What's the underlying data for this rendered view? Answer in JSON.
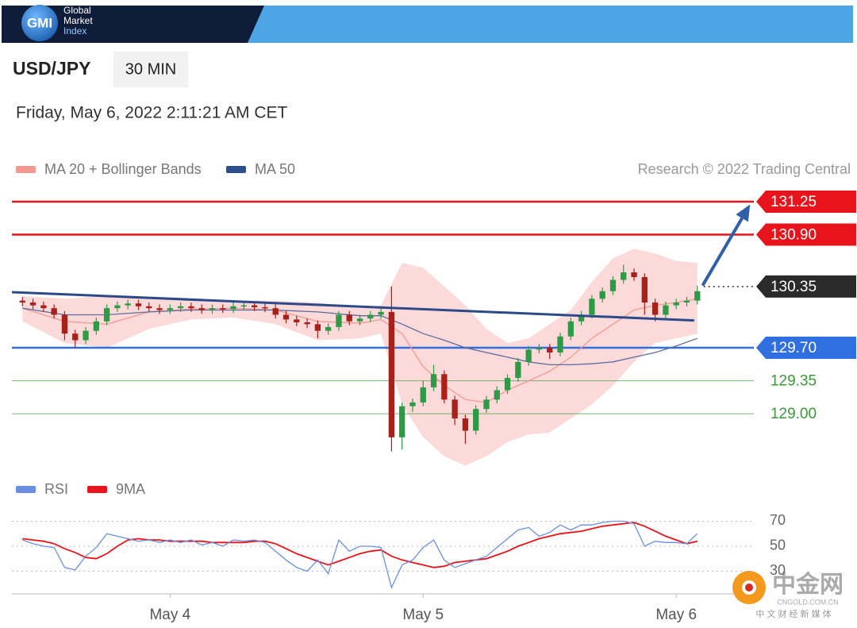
{
  "header": {
    "logo": "GMI",
    "brand": [
      "Global",
      "Market",
      "Index"
    ]
  },
  "symbol": "USD/JPY",
  "timeframe": "30 MIN",
  "timestamp": "Friday, May 6, 2022 2:11:21 AM CET",
  "chart_data": [
    {
      "type": "candlestick",
      "credit": "Research © 2022 Trading Central",
      "xlim": [
        -15,
        55.36
      ],
      "ylim": [
        128.42,
        131.41
      ],
      "up_color": "#2f9a45",
      "down_color": "#a8201a",
      "band_color": "#fdd3d3",
      "x": [
        -14,
        -13,
        -12,
        -11,
        -10,
        -9,
        -8,
        -7,
        -6,
        -5,
        -4,
        -3,
        -2,
        -1,
        0,
        1,
        2,
        3,
        4,
        5,
        6,
        7,
        8,
        9,
        10,
        11,
        12,
        13,
        14,
        15,
        16,
        17,
        18,
        19,
        20,
        21,
        22,
        23,
        24,
        25,
        26,
        27,
        28,
        29,
        30,
        31,
        32,
        33,
        34,
        35,
        36,
        37,
        38,
        39,
        40,
        41,
        42,
        43,
        44,
        45,
        46,
        47,
        48,
        49,
        50
      ],
      "open": [
        130.2,
        130.18,
        130.15,
        130.12,
        130.05,
        129.85,
        129.78,
        129.88,
        129.98,
        130.12,
        130.15,
        130.17,
        130.14,
        130.12,
        130.1,
        130.12,
        130.14,
        130.12,
        130.1,
        130.12,
        130.11,
        130.14,
        130.15,
        130.13,
        130.12,
        130.05,
        130.0,
        129.97,
        129.95,
        129.88,
        129.92,
        130.05,
        129.98,
        130.01,
        130.05,
        130.08,
        128.75,
        129.08,
        129.12,
        129.28,
        129.42,
        129.15,
        128.95,
        128.82,
        129.05,
        129.15,
        129.25,
        129.38,
        129.55,
        129.68,
        129.7,
        129.65,
        129.82,
        129.98,
        130.05,
        130.22,
        130.3,
        130.42,
        130.5,
        130.45,
        130.18,
        130.05,
        130.15,
        130.18,
        130.2
      ],
      "high": [
        130.24,
        130.22,
        130.19,
        130.16,
        130.09,
        129.89,
        129.92,
        130.02,
        130.16,
        130.19,
        130.21,
        130.21,
        130.18,
        130.16,
        130.16,
        130.18,
        130.18,
        130.16,
        130.16,
        130.16,
        130.18,
        130.19,
        130.19,
        130.17,
        130.16,
        130.09,
        130.04,
        130.01,
        129.99,
        129.96,
        130.09,
        130.09,
        130.05,
        130.09,
        130.12,
        130.35,
        129.12,
        129.16,
        129.35,
        129.52,
        129.46,
        129.19,
        128.99,
        129.09,
        129.19,
        129.29,
        129.42,
        129.59,
        129.72,
        129.74,
        129.74,
        129.86,
        130.02,
        130.09,
        130.26,
        130.34,
        130.46,
        130.58,
        130.54,
        130.49,
        130.22,
        130.19,
        130.22,
        130.24,
        130.36
      ],
      "low": [
        130.14,
        130.11,
        130.08,
        130.01,
        129.78,
        129.7,
        129.74,
        129.84,
        129.94,
        130.08,
        130.11,
        130.1,
        130.08,
        130.06,
        130.06,
        130.08,
        130.08,
        130.06,
        130.06,
        130.07,
        130.07,
        130.1,
        130.09,
        130.08,
        130.01,
        129.96,
        129.93,
        129.91,
        129.8,
        129.84,
        129.88,
        129.94,
        129.94,
        129.97,
        130.01,
        128.6,
        128.62,
        129.02,
        129.08,
        129.24,
        129.11,
        128.88,
        128.68,
        128.78,
        129.01,
        129.11,
        129.21,
        129.34,
        129.51,
        129.64,
        129.58,
        129.61,
        129.78,
        129.94,
        130.01,
        130.18,
        130.26,
        130.38,
        130.41,
        130.05,
        129.98,
        130.01,
        130.11,
        130.14,
        130.16
      ],
      "close": [
        130.18,
        130.15,
        130.12,
        130.05,
        129.85,
        129.78,
        129.88,
        129.98,
        130.12,
        130.15,
        130.17,
        130.14,
        130.12,
        130.1,
        130.12,
        130.14,
        130.12,
        130.1,
        130.12,
        130.11,
        130.14,
        130.15,
        130.13,
        130.12,
        130.05,
        130.0,
        129.97,
        129.95,
        129.88,
        129.92,
        130.05,
        129.98,
        130.01,
        130.05,
        130.08,
        128.75,
        129.08,
        129.12,
        129.28,
        129.42,
        129.15,
        128.95,
        128.82,
        129.05,
        129.15,
        129.25,
        129.38,
        129.55,
        129.68,
        129.7,
        129.65,
        129.82,
        129.98,
        130.05,
        130.22,
        130.3,
        130.42,
        130.5,
        130.45,
        130.18,
        130.05,
        130.15,
        130.18,
        130.2,
        130.3
      ],
      "series": [
        {
          "name": "MA 20 + Bollinger Bands",
          "color": "#f29a92",
          "x": [
            -14,
            -10,
            -6,
            -2,
            2,
            6,
            10,
            14,
            18,
            20,
            22,
            24,
            26,
            28,
            30,
            32,
            34,
            36,
            38,
            40,
            42,
            44,
            46,
            48,
            50
          ],
          "values": [
            130.12,
            129.98,
            129.95,
            130.08,
            130.11,
            130.12,
            130.1,
            129.98,
            129.96,
            130.0,
            129.85,
            129.5,
            129.3,
            129.15,
            129.12,
            129.25,
            129.35,
            129.45,
            129.6,
            129.8,
            129.95,
            130.1,
            130.15,
            130.18,
            130.22
          ],
          "upper": [
            130.25,
            130.22,
            130.25,
            130.22,
            130.22,
            130.2,
            130.2,
            130.18,
            130.12,
            130.15,
            130.6,
            130.55,
            130.35,
            130.15,
            129.9,
            129.75,
            129.8,
            129.95,
            130.1,
            130.4,
            130.65,
            130.75,
            130.7,
            130.62,
            130.6
          ],
          "lower": [
            129.98,
            129.75,
            129.7,
            129.9,
            130.0,
            130.02,
            129.95,
            129.78,
            129.8,
            129.85,
            129.1,
            128.75,
            128.55,
            128.45,
            128.55,
            128.7,
            128.78,
            128.8,
            128.95,
            129.1,
            129.3,
            129.55,
            129.75,
            129.8,
            129.85
          ]
        },
        {
          "name": "MA 50",
          "color": "#5a6e9c",
          "legend_color": "#2c4f8f",
          "x": [
            -14,
            -10,
            -6,
            -2,
            2,
            6,
            10,
            14,
            18,
            20,
            22,
            24,
            26,
            28,
            30,
            32,
            34,
            36,
            38,
            40,
            42,
            44,
            46,
            48,
            50
          ],
          "values": [
            130.12,
            130.05,
            130.05,
            130.08,
            130.1,
            130.1,
            130.1,
            130.08,
            130.04,
            130.04,
            129.95,
            129.85,
            129.78,
            129.7,
            129.65,
            129.6,
            129.55,
            129.52,
            129.52,
            129.53,
            129.55,
            129.6,
            129.65,
            129.72,
            129.8
          ]
        }
      ],
      "trend_line": {
        "color": "#2c4a8a",
        "x": [
          -15,
          49.7
        ],
        "y": [
          130.29,
          129.99
        ]
      },
      "arrow": {
        "color": "#2f5fa8",
        "x": [
          50.5,
          55
        ],
        "y": [
          130.36,
          131.22
        ]
      },
      "levels": [
        {
          "value": 131.25,
          "label": "131.25",
          "color": "#e8141b",
          "kind": "badge",
          "line": "solid"
        },
        {
          "value": 130.9,
          "label": "130.90",
          "color": "#e8141b",
          "kind": "badge",
          "line": "solid"
        },
        {
          "value": 130.35,
          "label": "130.35",
          "color": "#2b2b2b",
          "kind": "badge",
          "line": "dotted"
        },
        {
          "value": 129.7,
          "label": "129.70",
          "color": "#2f6fe0",
          "kind": "badge",
          "line": "solid"
        },
        {
          "value": 129.35,
          "label": "129.35",
          "color": "#3a9a3a",
          "kind": "text",
          "line": "solid"
        },
        {
          "value": 129.0,
          "label": "129.00",
          "color": "#3a9a3a",
          "kind": "text",
          "line": "solid"
        }
      ]
    },
    {
      "type": "line",
      "xlim": [
        -15,
        55.36
      ],
      "ylim": [
        13.8,
        77.3
      ],
      "yticks": [
        30,
        50,
        70
      ],
      "xticks": [
        {
          "value": 0,
          "label": "May 4"
        },
        {
          "value": 24,
          "label": "May 5"
        },
        {
          "value": 48,
          "label": "May 6"
        }
      ],
      "x": [
        -14,
        -13,
        -12,
        -11,
        -10,
        -9,
        -8,
        -7,
        -6,
        -5,
        -4,
        -3,
        -2,
        -1,
        0,
        1,
        2,
        3,
        4,
        5,
        6,
        7,
        8,
        9,
        10,
        11,
        12,
        13,
        14,
        15,
        16,
        17,
        18,
        19,
        20,
        21,
        22,
        23,
        24,
        25,
        26,
        27,
        28,
        29,
        30,
        31,
        32,
        33,
        34,
        35,
        36,
        37,
        38,
        39,
        40,
        41,
        42,
        43,
        44,
        45,
        46,
        47,
        48,
        49,
        50
      ],
      "series": [
        {
          "name": "RSI",
          "color": "#6b8fe0",
          "values": [
            55,
            52,
            50,
            49,
            33,
            31,
            42,
            49,
            60,
            58,
            56,
            54,
            55,
            53,
            55,
            53,
            55,
            51,
            53,
            50,
            55,
            54,
            55,
            53,
            46,
            39,
            33,
            30,
            39,
            28,
            55,
            46,
            50,
            50,
            49,
            17,
            35,
            39,
            49,
            55,
            39,
            33,
            36,
            39,
            42,
            49,
            56,
            63,
            65,
            58,
            61,
            67,
            63,
            67,
            67,
            69,
            70,
            70,
            68,
            50,
            54,
            53,
            53,
            52,
            60
          ]
        },
        {
          "name": "9MA",
          "color": "#e8141b",
          "values": [
            56,
            55,
            54,
            52,
            48,
            45,
            41,
            40,
            44,
            50,
            55,
            56,
            55,
            55,
            54,
            54,
            54,
            54,
            53,
            53,
            53,
            53,
            54,
            54,
            52,
            48,
            44,
            41,
            38,
            35,
            38,
            41,
            44,
            46,
            47,
            42,
            39,
            37,
            35,
            33,
            34,
            37,
            38,
            39,
            40,
            43,
            46,
            50,
            53,
            56,
            58,
            60,
            61,
            62,
            64,
            66,
            67,
            68,
            69,
            66,
            62,
            58,
            55,
            52,
            54
          ]
        }
      ]
    }
  ],
  "watermark": {
    "name": "中金网",
    "domain": "CNGOLD.COM.CN",
    "tagline": "中 文 财 经 新 媒 体"
  }
}
